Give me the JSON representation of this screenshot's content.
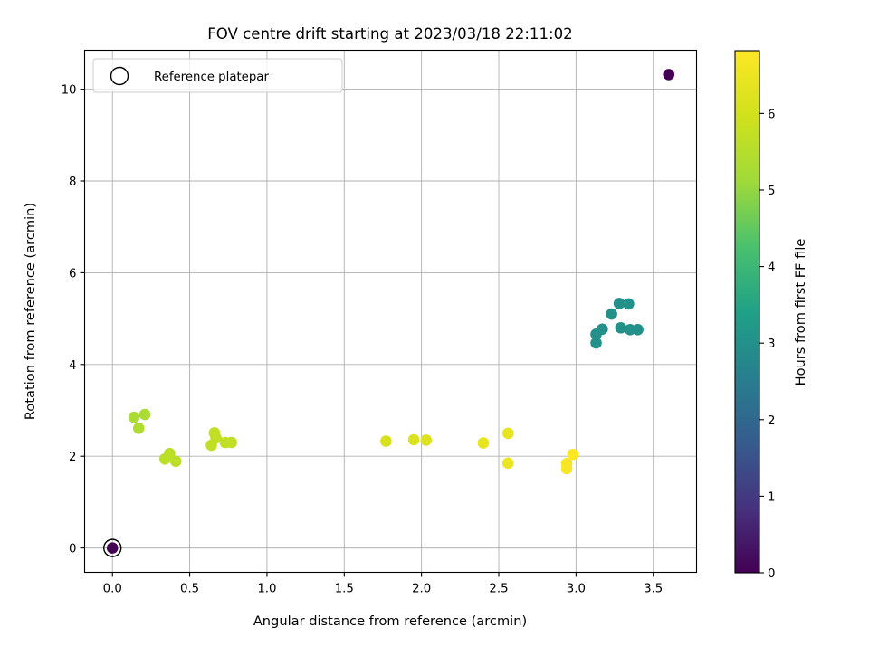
{
  "chart_data": {
    "type": "scatter",
    "title": "FOV centre drift starting at 2023/03/18 22:11:02",
    "xlabel": "Angular distance from reference (arcmin)",
    "ylabel": "Rotation from reference (arcmin)",
    "xlim": [
      -0.18,
      3.78
    ],
    "ylim": [
      -0.53,
      10.85
    ],
    "xticks": [
      0.0,
      0.5,
      1.0,
      1.5,
      2.0,
      2.5,
      3.0,
      3.5
    ],
    "xtick_labels": [
      "0.0",
      "0.5",
      "1.0",
      "1.5",
      "2.0",
      "2.5",
      "3.0",
      "3.5"
    ],
    "yticks": [
      0,
      2,
      4,
      6,
      8,
      10
    ],
    "ytick_labels": [
      "0",
      "2",
      "4",
      "6",
      "8",
      "10"
    ],
    "grid": true,
    "legend": {
      "position": "top-left",
      "label": "Reference platepar"
    },
    "reference_point": {
      "x": 0.0,
      "y": 0.0
    },
    "colorbar": {
      "label": "Hours from first FF file",
      "colormap": "viridis",
      "range": [
        0,
        6.82
      ],
      "ticks": [
        0,
        1,
        2,
        3,
        4,
        5,
        6
      ],
      "tick_labels": [
        "0",
        "1",
        "2",
        "3",
        "4",
        "5",
        "6"
      ]
    },
    "points": [
      {
        "x": 0.0,
        "y": 0.0,
        "c": 0.0
      },
      {
        "x": 3.6,
        "y": 10.32,
        "c": 0.0
      },
      {
        "x": 3.13,
        "y": 4.66,
        "c": 3.0
      },
      {
        "x": 3.13,
        "y": 4.47,
        "c": 3.0
      },
      {
        "x": 3.17,
        "y": 4.77,
        "c": 3.0
      },
      {
        "x": 3.23,
        "y": 5.1,
        "c": 3.0
      },
      {
        "x": 3.28,
        "y": 5.33,
        "c": 3.0
      },
      {
        "x": 3.34,
        "y": 5.32,
        "c": 3.0
      },
      {
        "x": 3.29,
        "y": 4.8,
        "c": 3.0
      },
      {
        "x": 3.35,
        "y": 4.76,
        "c": 3.0
      },
      {
        "x": 3.4,
        "y": 4.76,
        "c": 3.0
      },
      {
        "x": 0.14,
        "y": 2.85,
        "c": 5.3
      },
      {
        "x": 0.21,
        "y": 2.91,
        "c": 5.3
      },
      {
        "x": 0.17,
        "y": 2.61,
        "c": 5.4
      },
      {
        "x": 0.34,
        "y": 1.94,
        "c": 5.6
      },
      {
        "x": 0.37,
        "y": 2.06,
        "c": 5.6
      },
      {
        "x": 0.41,
        "y": 1.89,
        "c": 5.6
      },
      {
        "x": 0.66,
        "y": 2.51,
        "c": 5.7
      },
      {
        "x": 0.64,
        "y": 2.24,
        "c": 5.7
      },
      {
        "x": 0.67,
        "y": 2.4,
        "c": 5.7
      },
      {
        "x": 0.73,
        "y": 2.3,
        "c": 5.7
      },
      {
        "x": 0.77,
        "y": 2.3,
        "c": 5.7
      },
      {
        "x": 1.77,
        "y": 2.33,
        "c": 6.1
      },
      {
        "x": 1.95,
        "y": 2.36,
        "c": 6.2
      },
      {
        "x": 2.03,
        "y": 2.35,
        "c": 6.2
      },
      {
        "x": 2.4,
        "y": 2.29,
        "c": 6.4
      },
      {
        "x": 2.56,
        "y": 2.5,
        "c": 6.4
      },
      {
        "x": 2.56,
        "y": 1.85,
        "c": 6.5
      },
      {
        "x": 2.94,
        "y": 1.73,
        "c": 6.7
      },
      {
        "x": 2.94,
        "y": 1.84,
        "c": 6.7
      },
      {
        "x": 2.98,
        "y": 2.04,
        "c": 6.8
      }
    ]
  }
}
